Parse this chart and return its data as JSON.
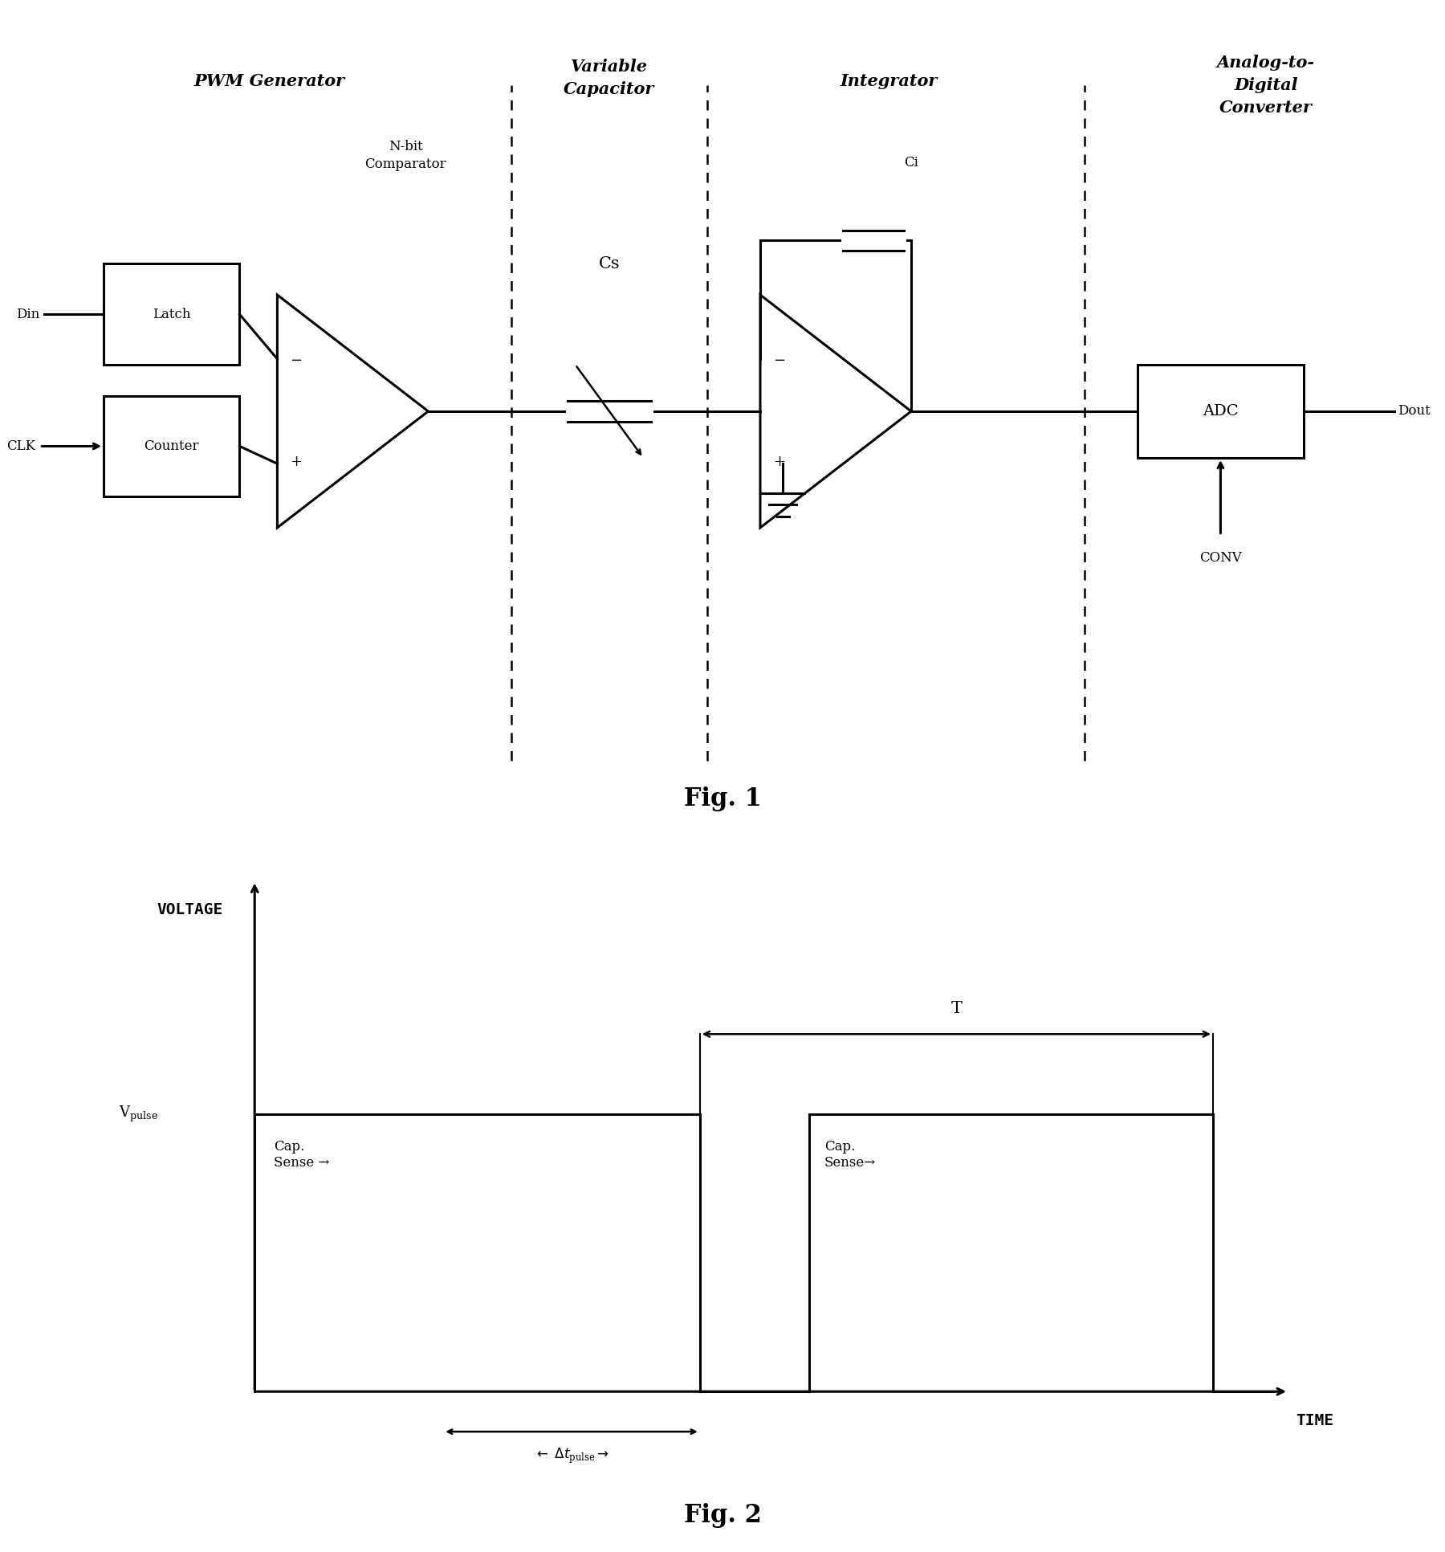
{
  "bg_color": "#ffffff",
  "fig_width": 18.0,
  "fig_height": 19.32,
  "fig1_label": "Fig. 1",
  "fig2_label": "Fig. 2",
  "section_labels": {
    "pwm": "PWM Generator",
    "var_cap": "Variable\nCapacitor",
    "integrator": "Integrator",
    "adc_label": "Analog-to-\nDigital\nConverter"
  },
  "component_labels": {
    "nbit": "N-bit\nComparator",
    "cs": "Cs",
    "ci": "Ci",
    "latch": "Latch",
    "counter": "Counter",
    "adc": "ADC"
  },
  "signal_labels": {
    "din": "Din",
    "clk": "CLK",
    "dout": "Dout",
    "conv": "CONV"
  },
  "fig2_labels": {
    "voltage": "VOLTAGE",
    "time": "TIME",
    "T_label": "T"
  }
}
